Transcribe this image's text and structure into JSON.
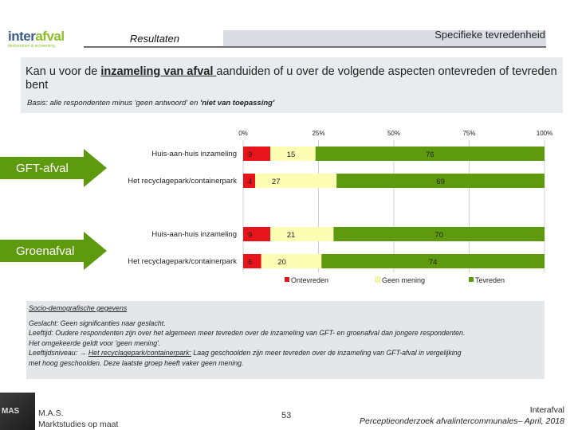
{
  "header": {
    "logo_brand_a": "inter",
    "logo_brand_b": "afval",
    "logo_tagline": "deelcentrum & ecowerking",
    "section_label": "Resultaten",
    "page_topic": "Specifieke tevredenheid"
  },
  "question": {
    "pre": "Kan u voor de ",
    "emph": "inzameling van afval ",
    "post": "aanduiden of u over de volgende aspecten ontevreden of tevreden bent",
    "basis_pre": "Basis: alle respondenten minus 'geen antwoord' en ",
    "basis_bold": "'niet van toepassing'"
  },
  "groups": [
    {
      "label": "GFT-afval"
    },
    {
      "label": "Groenafval"
    }
  ],
  "chart_data": {
    "type": "bar",
    "orientation": "horizontal",
    "stacked": true,
    "percent_scale": true,
    "xlim": [
      0,
      100
    ],
    "ticks": [
      "0%",
      "25%",
      "50%",
      "75%",
      "100%"
    ],
    "categories": [
      "Huis-aan-huis inzameling",
      "Het recyclagepark/containerpark",
      "Huis-aan-huis inzameling",
      "Het recyclagepark/containerpark"
    ],
    "series": [
      {
        "name": "Ontevreden",
        "color": "#e8141b",
        "values": [
          9,
          4,
          9,
          6
        ]
      },
      {
        "name": "Geen mening",
        "color": "#fdfdb3",
        "values": [
          15,
          27,
          21,
          20
        ]
      },
      {
        "name": "Tevreden",
        "color": "#5e9a0d",
        "values": [
          76,
          69,
          70,
          74
        ]
      }
    ],
    "legend_position": "bottom"
  },
  "socio": {
    "title": "Socio-demografische gegevens",
    "lines": [
      "Geslacht: Geen significanties naar geslacht.",
      "Leeftijd: Oudere respondenten zijn over het algemeen meer tevreden over de inzameling van GFT- en groenafval dan jongere respondenten.",
      "Het omgekeerde geldt voor 'geen mening'."
    ],
    "edu_pre": "Leeftijdsniveau: ",
    "edu_arrow": "→ ",
    "edu_link": "Het recyclagepark/containerpark:",
    "edu_post": " Laag geschoolden zijn meer tevreden over de inzameling van GFT-afval in vergelijking",
    "edu_line2": "met hoog geschoolden. Deze laatste groep heeft vaker geen mening."
  },
  "footer": {
    "photo_text": "MAS",
    "company_line1": "M.A.S.",
    "company_line2": "Marktstudies op maat",
    "page_number": "53",
    "org_line1": "Interafval",
    "org_line2": "Perceptieonderzoek afvalintercommunales– April, 2018"
  }
}
